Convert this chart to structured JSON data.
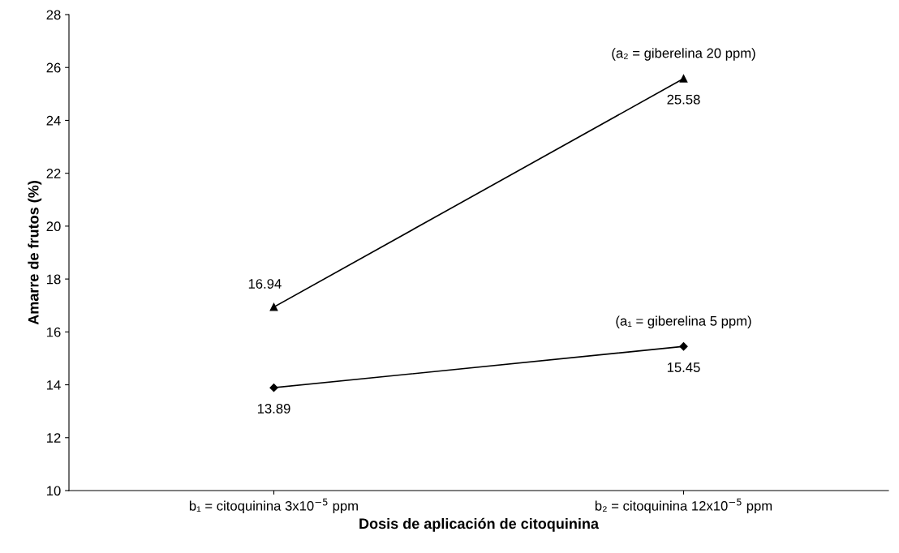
{
  "chart_data": {
    "type": "line",
    "xlabel": "Dosis de aplicación de citoquinina",
    "ylabel": "Amarre de frutos (%)",
    "categories": [
      "b₁ = citoquinina 3x10$^{−5}$ ppm",
      "b₂ = citoquinina 12x10$^{−5}$ ppm"
    ],
    "series": [
      {
        "name": "(a₁ = giberelina 5 ppm)",
        "color": "#000000",
        "values": [
          13.89,
          15.45
        ],
        "marker": "diamond"
      },
      {
        "name": "(a₂ = giberelina 20 ppm)",
        "color": "#000000",
        "values": [
          16.94,
          25.58
        ],
        "marker": "triangle"
      }
    ],
    "ylim": [
      10,
      28
    ],
    "yticks": [
      10,
      12,
      14,
      16,
      18,
      20,
      22,
      24,
      26,
      28
    ],
    "grid": false,
    "legend": false,
    "data_labels": true,
    "line_style": "solid"
  }
}
